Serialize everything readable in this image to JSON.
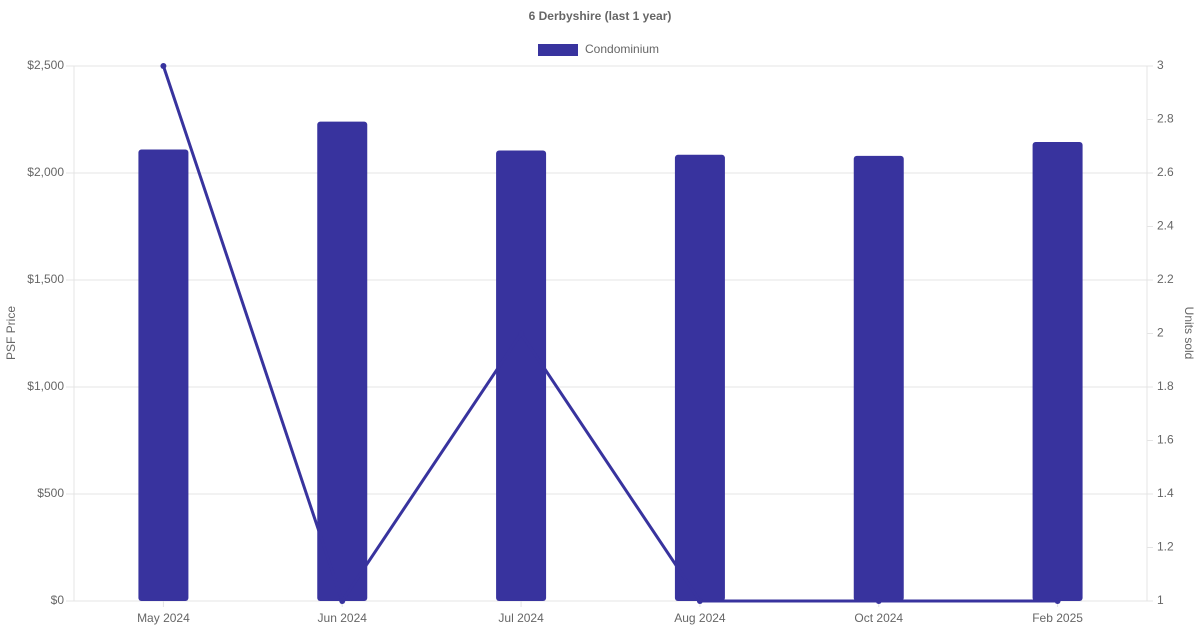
{
  "chart_data": {
    "type": "bar",
    "title": "6 Derbyshire (last 1 year)",
    "y_label": "PSF Price",
    "y2_label": "Units sold",
    "categories": [
      "May 2024",
      "Jun 2024",
      "Jul 2024",
      "Aug 2024",
      "Oct 2024",
      "Feb 2025"
    ],
    "series": [
      {
        "name": "Condominium",
        "type": "bar",
        "color": "#38339e",
        "values": [
          2110,
          2240,
          2105,
          2085,
          2080,
          2145
        ]
      },
      {
        "type": "line",
        "axis": "y2",
        "color": "#38339e",
        "values": [
          3,
          1,
          2,
          1,
          1,
          1
        ]
      }
    ],
    "ylim": [
      0,
      2500
    ],
    "yticks": [
      {
        "value": 0,
        "label": "$0"
      },
      {
        "value": 500,
        "label": "$500"
      },
      {
        "value": 1000,
        "label": "$1,000"
      },
      {
        "value": 1500,
        "label": "$1,500"
      },
      {
        "value": 2000,
        "label": "$2,000"
      },
      {
        "value": 2500,
        "label": "$2,500"
      }
    ],
    "y2lim": [
      1,
      3
    ],
    "y2ticks": [
      1,
      1.2,
      1.4,
      1.6,
      1.8,
      2,
      2.2,
      2.4,
      2.6,
      2.8,
      3
    ],
    "grid": true,
    "legend": "top"
  }
}
